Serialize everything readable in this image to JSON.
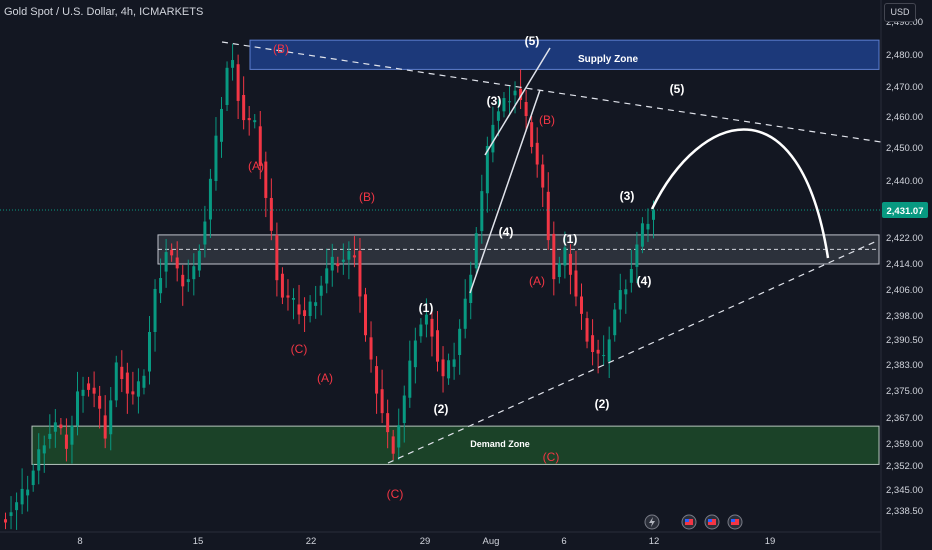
{
  "header": {
    "title": "Gold Spot / U.S. Dollar, 4h, ICMARKETS",
    "currency_button": "USD"
  },
  "chart_data": {
    "type": "candlestick",
    "symbol": "Gold Spot / U.S. Dollar",
    "interval": "4h",
    "exchange": "ICMARKETS",
    "y_ticks": [
      "2,490.00",
      "2,480.00",
      "2,470.00",
      "2,460.00",
      "2,450.00",
      "2,440.00",
      "2,431.07",
      "2,422.00",
      "2,414.00",
      "2,406.00",
      "2,398.00",
      "2,390.50",
      "2,383.00",
      "2,375.00",
      "2,367.00",
      "2,359.00",
      "2,352.00",
      "2,345.00",
      "2,338.50"
    ],
    "y_tick_values": [
      2490,
      2480,
      2470,
      2460,
      2450,
      2440,
      2431.07,
      2422,
      2414,
      2406,
      2398,
      2390.5,
      2383,
      2375,
      2367,
      2359,
      2352,
      2345,
      2338.5
    ],
    "last_price": "2,431.07",
    "x_ticks": [
      "8",
      "15",
      "22",
      "29",
      "Aug",
      "6",
      "12",
      "19"
    ],
    "candle_colors": {
      "up": "#089981",
      "down": "#f23645"
    },
    "zones": [
      {
        "name": "Supply Zone",
        "color": "#1e3f8a"
      },
      {
        "name": "Demand Zone",
        "color": "#1e4d2b"
      }
    ],
    "wave_labels": [
      {
        "text": "(B)",
        "color": "#f23645"
      },
      {
        "text": "(A)",
        "color": "#f23645"
      },
      {
        "text": "(C)",
        "color": "#f23645"
      },
      {
        "text": "(B)",
        "color": "#f23645"
      },
      {
        "text": "(A)",
        "color": "#f23645"
      },
      {
        "text": "(C)",
        "color": "#f23645"
      },
      {
        "text": "(1)",
        "color": "#ffffff"
      },
      {
        "text": "(2)",
        "color": "#ffffff"
      },
      {
        "text": "(3)",
        "color": "#ffffff"
      },
      {
        "text": "(4)",
        "color": "#ffffff"
      },
      {
        "text": "(5)",
        "color": "#ffffff"
      },
      {
        "text": "(B)",
        "color": "#f23645"
      },
      {
        "text": "(A)",
        "color": "#f23645"
      },
      {
        "text": "(1)",
        "color": "#ffffff"
      },
      {
        "text": "(C)",
        "color": "#f23645"
      },
      {
        "text": "(2)",
        "color": "#ffffff"
      },
      {
        "text": "(3)",
        "color": "#ffffff"
      },
      {
        "text": "(4)",
        "color": "#ffffff"
      },
      {
        "text": "(5)",
        "color": "#ffffff"
      }
    ],
    "bottom_icons": [
      "lightning-icon",
      "us-flag-icon",
      "us-flag-icon",
      "us-flag-icon"
    ]
  }
}
